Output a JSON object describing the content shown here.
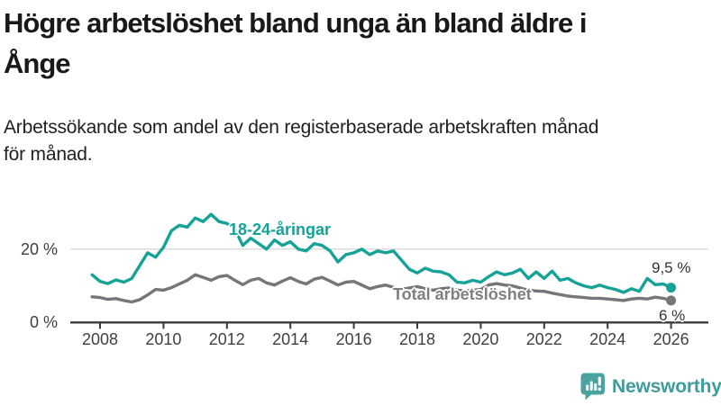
{
  "header": {
    "title_lines": [
      "Högre arbetslöshet bland unga än bland äldre i",
      "Ånge"
    ],
    "subtitle_lines": [
      "Arbetssökande som andel av den registerbaserade arbetskraften månad",
      "för månad."
    ]
  },
  "chart_data": {
    "type": "line",
    "title": "Högre arbetslöshet bland unga än bland äldre i Ånge",
    "subtitle": "Arbetssökande som andel av den registerbaserade arbetskraften månad för månad.",
    "unit": "%",
    "x_ticks": [
      2008,
      2010,
      2012,
      2014,
      2016,
      2018,
      2020,
      2022,
      2024,
      2026
    ],
    "y_ticks": [
      {
        "value": 20,
        "label": "20 %"
      },
      {
        "value": 0,
        "label": "0 %"
      }
    ],
    "x_range": [
      2007.6,
      2026.6
    ],
    "y_range": [
      0,
      32
    ],
    "grid_color": "#dcdcdc",
    "axis_color": "#3a3a3a",
    "x": [
      2007.75,
      2008,
      2008.25,
      2008.5,
      2008.75,
      2009,
      2009.25,
      2009.5,
      2009.75,
      2010,
      2010.25,
      2010.5,
      2010.75,
      2011,
      2011.25,
      2011.5,
      2011.75,
      2012,
      2012.25,
      2012.5,
      2012.75,
      2013,
      2013.25,
      2013.5,
      2013.75,
      2014,
      2014.25,
      2014.5,
      2014.75,
      2015,
      2015.25,
      2015.5,
      2015.75,
      2016,
      2016.25,
      2016.5,
      2016.75,
      2017,
      2017.25,
      2017.5,
      2017.75,
      2018,
      2018.25,
      2018.5,
      2018.75,
      2019,
      2019.25,
      2019.5,
      2019.75,
      2020,
      2020.25,
      2020.5,
      2020.75,
      2021,
      2021.25,
      2021.5,
      2021.75,
      2022,
      2022.25,
      2022.5,
      2022.75,
      2023,
      2023.25,
      2023.5,
      2023.75,
      2024,
      2024.25,
      2024.5,
      2024.75,
      2025,
      2025.25,
      2025.5,
      2025.75,
      2026
    ],
    "series": [
      {
        "name": "18-24-åringar",
        "color": "#16a296",
        "end_label": "9,5 %",
        "end_value": 9.5,
        "values": [
          13,
          11.2,
          10.6,
          11.6,
          11,
          12,
          15.5,
          19,
          17.8,
          20.5,
          25,
          26.5,
          26,
          28.5,
          27.5,
          29.5,
          27.5,
          27,
          25.5,
          21,
          23,
          21.5,
          20,
          22.5,
          21,
          22,
          20,
          19.5,
          21.5,
          21,
          19.5,
          16.5,
          18.5,
          19,
          20,
          18.5,
          19.5,
          19,
          19.5,
          17,
          14.5,
          13.5,
          14.8,
          14,
          13.8,
          13,
          11,
          10.8,
          11.5,
          11,
          12.5,
          13.8,
          13,
          13.5,
          14.5,
          12,
          13.8,
          12,
          14,
          11.5,
          12,
          10.8,
          10,
          9.5,
          10.2,
          9.5,
          9,
          8.2,
          9.2,
          8.5,
          12,
          10.3,
          10.5,
          9.5
        ]
      },
      {
        "name": "Total arbetslöshet",
        "color": "#76767a",
        "end_label": "6 %",
        "end_value": 6,
        "values": [
          7,
          6.8,
          6.3,
          6.5,
          6,
          5.6,
          6.2,
          7.5,
          9,
          8.8,
          9.5,
          10.5,
          11.5,
          13,
          12.3,
          11.5,
          12.5,
          12.8,
          11.5,
          10.3,
          11.5,
          12,
          10.8,
          10.2,
          11.3,
          12.2,
          11.2,
          10.5,
          11.8,
          12.3,
          11.3,
          10.2,
          11,
          11.2,
          10.2,
          9.2,
          9.8,
          10.2,
          9.6,
          9,
          9.4,
          9.8,
          9.2,
          8.8,
          9.2,
          9.4,
          8.8,
          8.6,
          8.8,
          9,
          10.2,
          10.6,
          10.2,
          10,
          9.4,
          8.8,
          8.6,
          8.5,
          8,
          7.6,
          7.2,
          7,
          6.8,
          6.6,
          6.6,
          6.4,
          6.2,
          6,
          6.4,
          6.6,
          6.4,
          6.9,
          6.6,
          6
        ]
      }
    ]
  },
  "footer": {
    "brand": "Newsworthy",
    "brand_color": "#3e9c9a",
    "icon_color": "#4aa2a1",
    "icon_name": "bar-chart-speech-bubble"
  }
}
